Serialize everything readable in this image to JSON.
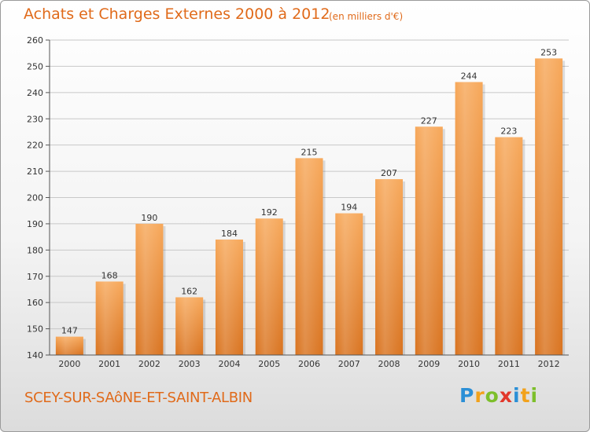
{
  "chart_data": {
    "type": "bar",
    "title": "Achats et Charges Externes 2000 à 2012",
    "subtitle": "(en milliers d'€)",
    "categories": [
      "2000",
      "2001",
      "2002",
      "2003",
      "2004",
      "2005",
      "2006",
      "2007",
      "2008",
      "2009",
      "2010",
      "2011",
      "2012"
    ],
    "values": [
      147,
      168,
      190,
      162,
      184,
      192,
      215,
      194,
      207,
      227,
      244,
      223,
      253
    ],
    "ylim": [
      140,
      260
    ],
    "yticks": [
      140,
      150,
      160,
      170,
      180,
      190,
      200,
      210,
      220,
      230,
      240,
      250,
      260
    ],
    "grid": true,
    "bar_color_top": "#f7a85a",
    "bar_color_bottom": "#d9731f"
  },
  "footer": {
    "place": "SCEY-SUR-SAôNE-ET-SAINT-ALBIN",
    "logo_letters": [
      {
        "ch": "P",
        "color": "#2b8fd6"
      },
      {
        "ch": "r",
        "color": "#f2a21c"
      },
      {
        "ch": "o",
        "color": "#7dbf2b"
      },
      {
        "ch": "x",
        "color": "#e2382b"
      },
      {
        "ch": "i",
        "color": "#2b8fd6"
      },
      {
        "ch": "t",
        "color": "#f2a21c"
      },
      {
        "ch": "i",
        "color": "#7dbf2b"
      }
    ]
  },
  "colors": {
    "accent": "#e06a1a"
  }
}
